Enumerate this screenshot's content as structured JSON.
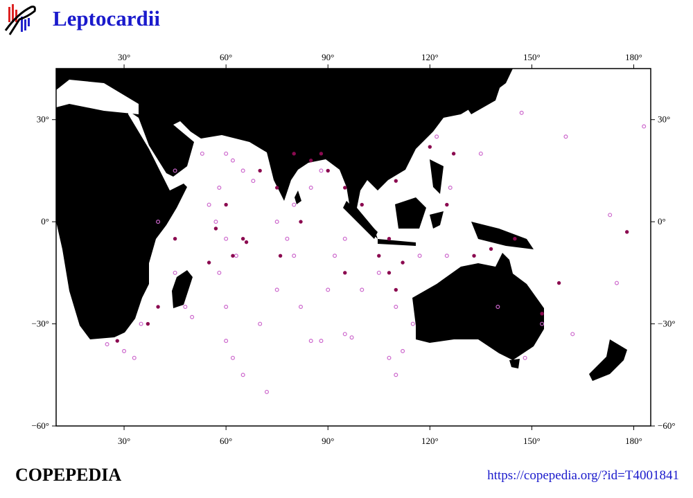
{
  "chart_data": {
    "type": "map",
    "title": "Leptocardii",
    "xlim": [
      10,
      185
    ],
    "ylim": [
      -60,
      45
    ],
    "xticks": [
      {
        "value": 30,
        "label": "30°"
      },
      {
        "value": 60,
        "label": "60°"
      },
      {
        "value": 90,
        "label": "90°"
      },
      {
        "value": 120,
        "label": "120°"
      },
      {
        "value": 150,
        "label": "150°"
      },
      {
        "value": 180,
        "label": "180°"
      }
    ],
    "yticks": [
      {
        "value": -60,
        "label": "−60°"
      },
      {
        "value": -30,
        "label": "−30°"
      },
      {
        "value": 0,
        "label": "0°"
      },
      {
        "value": 30,
        "label": "30°"
      }
    ],
    "series": [
      {
        "color": "#cc66cc",
        "marker": "open",
        "points": [
          [
            60,
            20
          ],
          [
            62,
            18
          ],
          [
            65,
            15
          ],
          [
            68,
            12
          ],
          [
            58,
            10
          ],
          [
            55,
            5
          ],
          [
            57,
            0
          ],
          [
            60,
            -5
          ],
          [
            63,
            -10
          ],
          [
            58,
            -15
          ],
          [
            60,
            -25
          ],
          [
            60,
            -35
          ],
          [
            62,
            -40
          ],
          [
            65,
            -45
          ],
          [
            72,
            -50
          ],
          [
            70,
            -30
          ],
          [
            75,
            -20
          ],
          [
            80,
            -10
          ],
          [
            82,
            -25
          ],
          [
            85,
            -35
          ],
          [
            88,
            -35
          ],
          [
            95,
            -33
          ],
          [
            97,
            -34
          ],
          [
            90,
            -20
          ],
          [
            92,
            -10
          ],
          [
            95,
            -5
          ],
          [
            100,
            -20
          ],
          [
            105,
            -15
          ],
          [
            110,
            -25
          ],
          [
            108,
            -40
          ],
          [
            110,
            -45
          ],
          [
            112,
            -38
          ],
          [
            115,
            -30
          ],
          [
            75,
            0
          ],
          [
            78,
            -5
          ],
          [
            80,
            5
          ],
          [
            85,
            10
          ],
          [
            88,
            15
          ],
          [
            45,
            15
          ],
          [
            40,
            0
          ],
          [
            45,
            -15
          ],
          [
            48,
            -25
          ],
          [
            35,
            -30
          ],
          [
            25,
            -36
          ],
          [
            30,
            -38
          ],
          [
            33,
            -40
          ],
          [
            50,
            -28
          ],
          [
            53,
            20
          ],
          [
            140,
            -25
          ],
          [
            153,
            -30
          ],
          [
            148,
            -40
          ],
          [
            162,
            -33
          ],
          [
            175,
            -18
          ],
          [
            173,
            2
          ],
          [
            160,
            25
          ],
          [
            183,
            28
          ],
          [
            147,
            32
          ],
          [
            135,
            20
          ],
          [
            122,
            25
          ],
          [
            126,
            10
          ],
          [
            117,
            -10
          ],
          [
            125,
            -10
          ]
        ]
      },
      {
        "color": "#8b0a50",
        "marker": "filled",
        "points": [
          [
            65,
            -5
          ],
          [
            66,
            -6
          ],
          [
            70,
            15
          ],
          [
            75,
            10
          ],
          [
            80,
            20
          ],
          [
            85,
            18
          ],
          [
            88,
            20
          ],
          [
            90,
            15
          ],
          [
            95,
            10
          ],
          [
            100,
            5
          ],
          [
            105,
            -10
          ],
          [
            108,
            -15
          ],
          [
            110,
            -20
          ],
          [
            112,
            -12
          ],
          [
            108,
            -5
          ],
          [
            57,
            -2
          ],
          [
            60,
            5
          ],
          [
            62,
            -10
          ],
          [
            55,
            -12
          ],
          [
            40,
            -25
          ],
          [
            28,
            -35
          ],
          [
            37,
            -30
          ],
          [
            45,
            -5
          ],
          [
            110,
            12
          ],
          [
            120,
            22
          ],
          [
            127,
            20
          ],
          [
            125,
            5
          ],
          [
            133,
            -10
          ],
          [
            138,
            -8
          ],
          [
            145,
            -5
          ],
          [
            158,
            -18
          ],
          [
            178,
            -3
          ],
          [
            153,
            -27
          ],
          [
            76,
            -10
          ],
          [
            82,
            0
          ],
          [
            95,
            -15
          ]
        ]
      }
    ],
    "footer_left": "COPEPEDIA",
    "footer_right": "https://copepedia.org/?id=T4001841"
  }
}
